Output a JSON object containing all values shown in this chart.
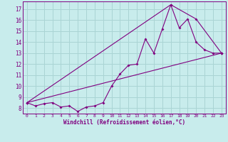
{
  "xlabel": "Windchill (Refroidissement éolien,°C)",
  "bg_color": "#c8ecec",
  "grid_color": "#aad4d4",
  "line_color": "#800080",
  "xlim": [
    -0.5,
    23.5
  ],
  "ylim": [
    7.5,
    17.7
  ],
  "xticks": [
    0,
    1,
    2,
    3,
    4,
    5,
    6,
    7,
    8,
    9,
    10,
    11,
    12,
    13,
    14,
    15,
    16,
    17,
    18,
    19,
    20,
    21,
    22,
    23
  ],
  "yticks": [
    8,
    9,
    10,
    11,
    12,
    13,
    14,
    15,
    16,
    17
  ],
  "line1_x": [
    0,
    1,
    2,
    3,
    4,
    5,
    6,
    7,
    8,
    9,
    10,
    11,
    12,
    13,
    14,
    15,
    16,
    17,
    18,
    19,
    20,
    21,
    22,
    23
  ],
  "line1_y": [
    8.5,
    8.2,
    8.4,
    8.5,
    8.1,
    8.2,
    7.7,
    8.1,
    8.2,
    8.5,
    10.0,
    11.1,
    11.9,
    12.0,
    14.3,
    13.0,
    15.2,
    17.4,
    15.3,
    16.1,
    14.0,
    13.3,
    13.0,
    13.0
  ],
  "line2_x": [
    0,
    23
  ],
  "line2_y": [
    8.5,
    13.0
  ],
  "line3_x": [
    0,
    17,
    20,
    23
  ],
  "line3_y": [
    8.5,
    17.4,
    16.1,
    13.0
  ]
}
